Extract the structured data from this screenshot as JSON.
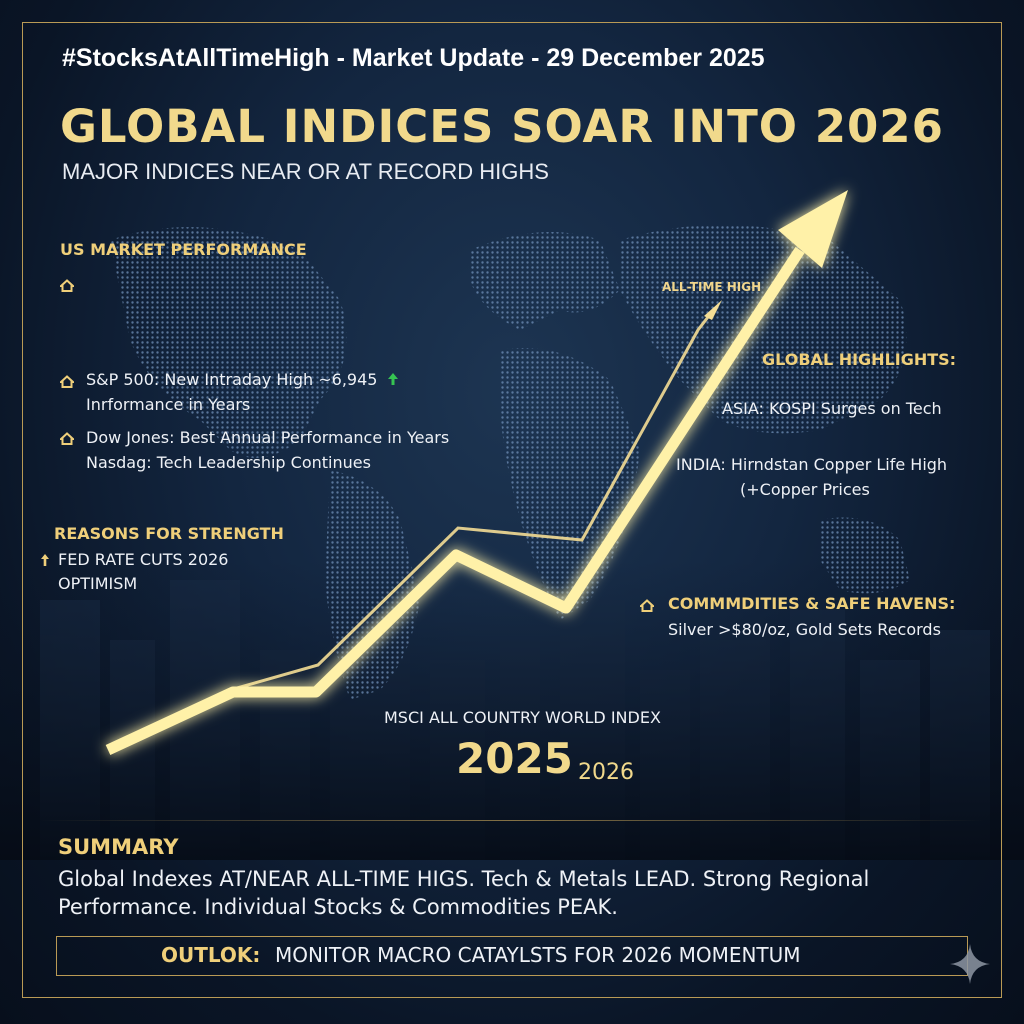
{
  "header": {
    "hashtag": "#StocksAtAllTimeHigh - Market Update - 29 December 2025",
    "headline": "GLOBAL INDICES SOAR INTO 2026",
    "subheadline": "MAJOR INDICES NEAR OR AT RECORD HIGHS"
  },
  "us_market": {
    "title": "US MARKET PERFORMANCE",
    "items": [
      "S&P 500: New Intraday High ~6,945",
      "Inrformance in Years",
      "Dow Jones: Best Annual Performance in Years",
      "Nasdag: Tech Leadership Continues"
    ]
  },
  "reasons": {
    "title": "REASONS FOR STRENGTH",
    "lines": [
      "FED RATE CUTS 2026",
      "OPTIMISM"
    ]
  },
  "chart_labels": {
    "all_time_high": "ALL-TIME HIGH",
    "index_name": "MSCI ALL COUNTRY WORLD INDEX",
    "year_start": "2025",
    "year_end": "2026"
  },
  "global_highlights": {
    "title": "GLOBAL HIGHLIGHTS:",
    "asia": "ASIA: KOSPI Surges on Tech",
    "india_line1": "INDIA: Hirndstan Copper Life High",
    "india_line2": "(+Copper Prices"
  },
  "commodities": {
    "title": "COMMMDITIES & SAFE HAVENS:",
    "text": "Silver >$80/oz, Gold Sets Records"
  },
  "summary": {
    "title": "SUMMARY",
    "line1": "Global Indexes AT/NEAR ALL-TIME HIGS. Tech & Metals LEAD. Strong Regional",
    "line2": "Performance. Individual Stocks & Commodities PEAK."
  },
  "outlook": {
    "label": "OUTLOK:",
    "text": "MONITOR MACRO CATAYLSTS FOR 2026 MOMENTUM"
  },
  "icons": [
    "house-icon",
    "up-arrow-icon",
    "sparkle-icon"
  ],
  "colors": {
    "gold": "#efcf7a",
    "arrow": "#fff3b0",
    "background": "#0b1628",
    "green": "#36c452"
  }
}
